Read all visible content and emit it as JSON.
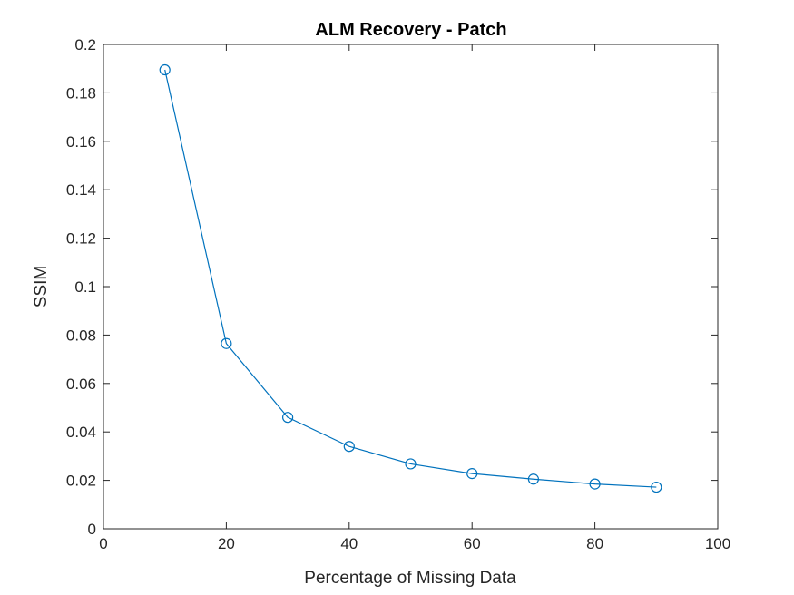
{
  "chart_data": {
    "type": "line",
    "title": "ALM Recovery - Patch",
    "xlabel": "Percentage of Missing Data",
    "ylabel": "SSIM",
    "xlim": [
      0,
      100
    ],
    "ylim": [
      0,
      0.2
    ],
    "xticks": [
      0,
      20,
      40,
      60,
      80,
      100
    ],
    "xtick_labels": [
      "0",
      "20",
      "40",
      "60",
      "80",
      "100"
    ],
    "yticks": [
      0,
      0.02,
      0.04,
      0.06,
      0.08,
      0.1,
      0.12,
      0.14,
      0.16,
      0.18,
      0.2
    ],
    "ytick_labels": [
      "0",
      "0.02",
      "0.04",
      "0.06",
      "0.08",
      "0.1",
      "0.12",
      "0.14",
      "0.16",
      "0.18",
      "0.2"
    ],
    "grid": false,
    "marker": "circle",
    "series": [
      {
        "x": [
          10,
          20,
          30,
          40,
          50,
          60,
          70,
          80,
          90
        ],
        "values": [
          0.1895,
          0.0765,
          0.046,
          0.034,
          0.0268,
          0.0228,
          0.0205,
          0.0185,
          0.0172
        ],
        "color": "#0072BD"
      }
    ]
  }
}
